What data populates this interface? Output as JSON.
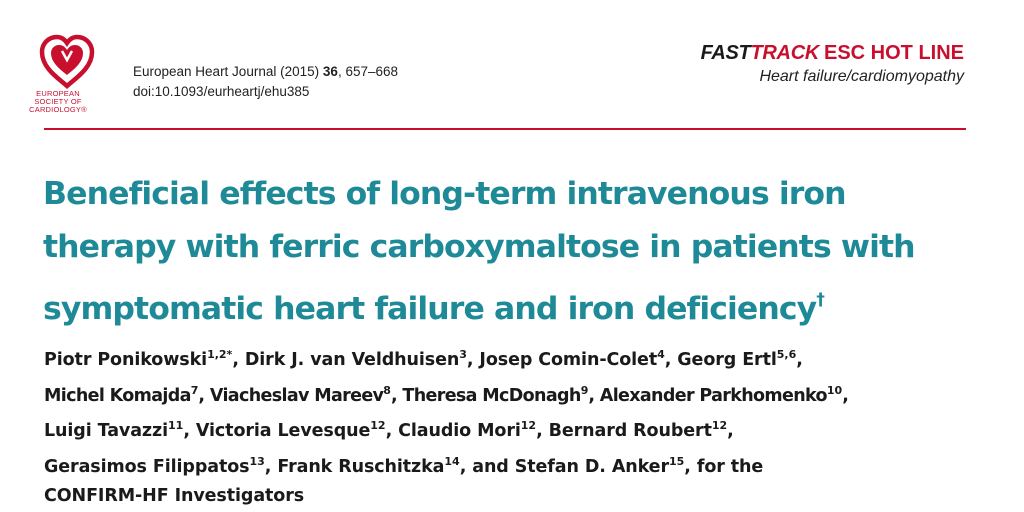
{
  "logo": {
    "lines": [
      "EUROPEAN",
      "SOCIETY OF",
      "CARDIOLOGY®"
    ],
    "color": "#c8102e"
  },
  "journal": {
    "name": "European Heart Journal",
    "year": "(2015)",
    "volume": "36",
    "pages": ", 657–668",
    "doi": "doi:10.1093/eurheartj/ehu385"
  },
  "fasttrack": {
    "fast": "FAST",
    "track": "TRACK",
    "esc": "ESC HOT LINE",
    "category": "Heart failure/cardiomyopathy"
  },
  "title": {
    "lines": [
      "Beneficial effects of long-term intravenous iron",
      "therapy with ferric carboxymaltose in patients with",
      "symptomatic heart failure and iron deficiency"
    ],
    "mark": "†",
    "color": "#1f8a97"
  },
  "authors": [
    [
      {
        "name": "Piotr Ponikowski",
        "sup": "1,2*",
        "after": ", "
      },
      {
        "name": "Dirk J. van Veldhuisen",
        "sup": "3",
        "after": ", "
      },
      {
        "name": "Josep Comin-Colet",
        "sup": "4",
        "after": ", "
      },
      {
        "name": "Georg Ertl",
        "sup": "5,6",
        "after": ","
      }
    ],
    [
      {
        "name": "Michel Komajda",
        "sup": "7",
        "after": ", "
      },
      {
        "name": "Viacheslav Mareev",
        "sup": "8",
        "after": ", "
      },
      {
        "name": "Theresa McDonagh",
        "sup": "9",
        "after": ", "
      },
      {
        "name": "Alexander Parkhomenko",
        "sup": "10",
        "after": ","
      }
    ],
    [
      {
        "name": "Luigi Tavazzi",
        "sup": "11",
        "after": ", "
      },
      {
        "name": "Victoria Levesque",
        "sup": "12",
        "after": ", "
      },
      {
        "name": "Claudio Mori",
        "sup": "12",
        "after": ", "
      },
      {
        "name": "Bernard Roubert",
        "sup": "12",
        "after": ","
      }
    ],
    [
      {
        "name": "Gerasimos Filippatos",
        "sup": "13",
        "after": ", "
      },
      {
        "name": "Frank Ruschitzka",
        "sup": "14",
        "after": ", and "
      },
      {
        "name": "Stefan D. Anker",
        "sup": "15",
        "after": ", for the"
      }
    ],
    [
      {
        "name": "CONFIRM-HF Investigators",
        "sup": "",
        "after": ""
      }
    ]
  ]
}
